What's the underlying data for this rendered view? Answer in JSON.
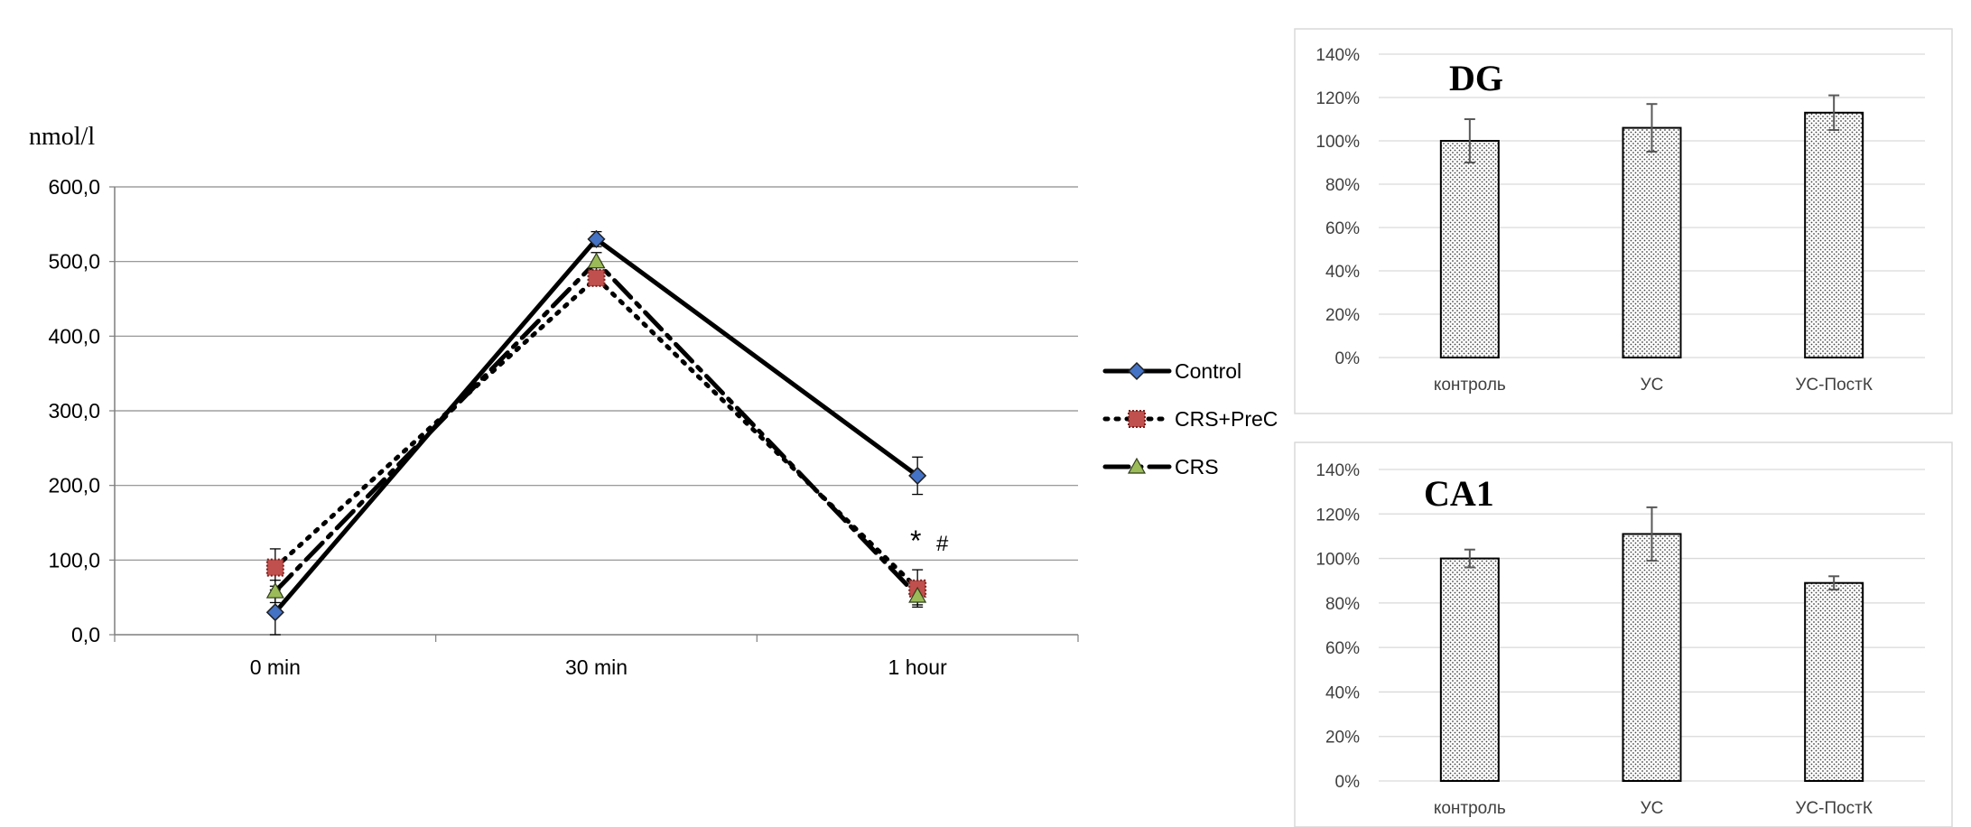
{
  "chart_data": [
    {
      "type": "line",
      "ylabel": "nmol/l",
      "categories": [
        "0 min",
        "30 min",
        "1 hour"
      ],
      "ylim": [
        0,
        600
      ],
      "ytick_labels": [
        "0,0",
        "100,0",
        "200,0",
        "300,0",
        "400,0",
        "500,0",
        "600,0"
      ],
      "grid": true,
      "legend_position": "right",
      "annotations": [
        "*",
        "#"
      ],
      "series": [
        {
          "name": "Control",
          "values": [
            30,
            530,
            213
          ],
          "errors": [
            30,
            10,
            25
          ],
          "marker": "diamond",
          "line": "solid",
          "color": "#4472c4"
        },
        {
          "name": "CRS+PreC",
          "values": [
            90,
            478,
            62
          ],
          "errors": [
            25,
            10,
            25
          ],
          "marker": "square",
          "line": "dotted",
          "color": "#c0504d"
        },
        {
          "name": "CRS",
          "values": [
            58,
            500,
            52
          ],
          "errors": [
            15,
            12,
            12
          ],
          "marker": "triangle",
          "line": "dashdot",
          "color": "#9bbb59"
        }
      ]
    },
    {
      "type": "bar",
      "title": "DG",
      "categories": [
        "контроль",
        "УС",
        "УС-ПостК"
      ],
      "values": [
        100,
        106,
        113
      ],
      "errors": [
        10,
        11,
        8
      ],
      "ylim": [
        0,
        140
      ],
      "ytick_labels": [
        "0%",
        "20%",
        "40%",
        "60%",
        "80%",
        "100%",
        "120%",
        "140%"
      ],
      "grid": true
    },
    {
      "type": "bar",
      "title": "CA1",
      "categories": [
        "контроль",
        "УС",
        "УС-ПостК"
      ],
      "values": [
        100,
        111,
        89
      ],
      "errors": [
        4,
        12,
        3
      ],
      "ylim": [
        0,
        140
      ],
      "ytick_labels": [
        "0%",
        "20%",
        "40%",
        "60%",
        "80%",
        "100%",
        "120%",
        "140%"
      ],
      "grid": true
    }
  ]
}
